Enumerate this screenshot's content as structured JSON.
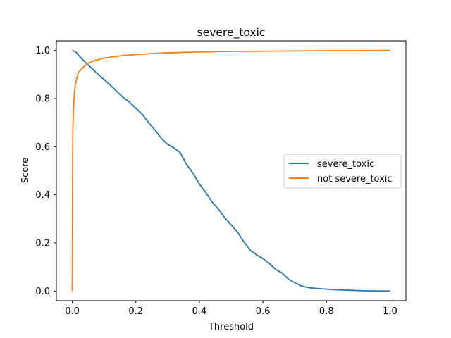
{
  "chart_data": {
    "type": "line",
    "title": "severe_toxic",
    "xlabel": "Threshold",
    "ylabel": "Score",
    "xlim": [
      -0.05,
      1.05
    ],
    "ylim": [
      -0.04,
      1.04
    ],
    "xticks": [
      0.0,
      0.2,
      0.4,
      0.6,
      0.8,
      1.0
    ],
    "xtick_labels": [
      "0.0",
      "0.2",
      "0.4",
      "0.6",
      "0.8",
      "1.0"
    ],
    "yticks": [
      0.0,
      0.2,
      0.4,
      0.6,
      0.8,
      1.0
    ],
    "ytick_labels": [
      "0.0",
      "0.2",
      "0.4",
      "0.6",
      "0.8",
      "1.0"
    ],
    "grid": false,
    "legend_position": "center-right",
    "series": [
      {
        "name": "severe_toxic",
        "color": "#1f77b4",
        "x": [
          0.0,
          0.01,
          0.02,
          0.03,
          0.05,
          0.07,
          0.09,
          0.1,
          0.12,
          0.14,
          0.16,
          0.18,
          0.2,
          0.22,
          0.24,
          0.26,
          0.28,
          0.3,
          0.32,
          0.34,
          0.36,
          0.38,
          0.4,
          0.42,
          0.44,
          0.46,
          0.48,
          0.5,
          0.52,
          0.54,
          0.56,
          0.58,
          0.6,
          0.62,
          0.64,
          0.66,
          0.68,
          0.7,
          0.72,
          0.74,
          0.76,
          0.78,
          0.8,
          0.82,
          0.84,
          0.86,
          0.88,
          0.9,
          0.92,
          0.94,
          0.96,
          0.98,
          1.0
        ],
        "y": [
          1.0,
          0.995,
          0.98,
          0.965,
          0.94,
          0.915,
          0.89,
          0.88,
          0.855,
          0.83,
          0.805,
          0.785,
          0.76,
          0.735,
          0.7,
          0.67,
          0.635,
          0.61,
          0.595,
          0.575,
          0.525,
          0.49,
          0.445,
          0.41,
          0.37,
          0.34,
          0.305,
          0.275,
          0.245,
          0.205,
          0.17,
          0.15,
          0.135,
          0.115,
          0.09,
          0.075,
          0.05,
          0.035,
          0.022,
          0.015,
          0.012,
          0.01,
          0.008,
          0.006,
          0.005,
          0.004,
          0.003,
          0.002,
          0.001,
          0.001,
          0.0,
          0.0,
          0.0
        ]
      },
      {
        "name": "not severe_toxic",
        "color": "#ff7f0e",
        "x": [
          0.0,
          0.001,
          0.002,
          0.004,
          0.006,
          0.008,
          0.01,
          0.015,
          0.02,
          0.03,
          0.04,
          0.05,
          0.07,
          0.1,
          0.13,
          0.16,
          0.2,
          0.25,
          0.3,
          0.35,
          0.4,
          0.5,
          0.6,
          0.7,
          0.8,
          0.9,
          1.0
        ],
        "y": [
          0.0,
          0.5,
          0.68,
          0.76,
          0.81,
          0.84,
          0.86,
          0.89,
          0.91,
          0.925,
          0.937,
          0.947,
          0.958,
          0.968,
          0.974,
          0.979,
          0.983,
          0.987,
          0.99,
          0.992,
          0.994,
          0.996,
          0.997,
          0.998,
          0.999,
          0.999,
          1.0
        ]
      }
    ]
  }
}
